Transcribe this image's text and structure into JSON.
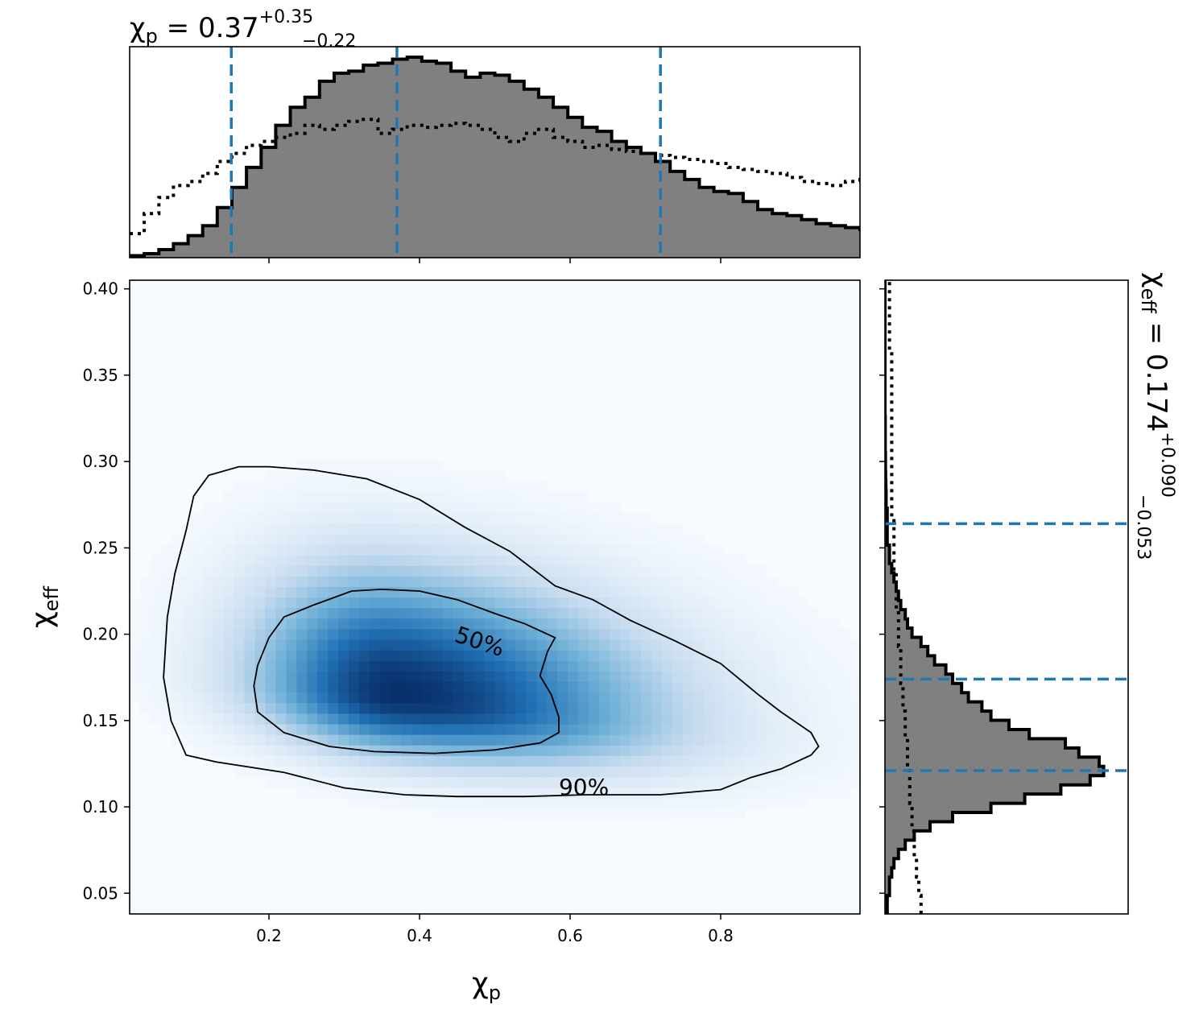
{
  "chart_data": [
    {
      "type": "heatmap",
      "panel": "joint",
      "xlabel": "χ",
      "xlabel_sub": "p",
      "ylabel": "χ",
      "ylabel_sub": "eff",
      "xlim": [
        0.015,
        0.985
      ],
      "ylim": [
        0.038,
        0.405
      ],
      "x_ticks": [
        "0.2",
        "0.4",
        "0.6",
        "0.8"
      ],
      "x_tick_values": [
        0.2,
        0.4,
        0.6,
        0.8
      ],
      "y_ticks": [
        "0.05",
        "0.10",
        "0.15",
        "0.20",
        "0.25",
        "0.30",
        "0.35",
        "0.40"
      ],
      "y_tick_values": [
        0.05,
        0.1,
        0.15,
        0.2,
        0.25,
        0.3,
        0.35,
        0.4
      ],
      "colormap": "Blues",
      "density_peak": {
        "x": 0.37,
        "y": 0.165
      },
      "contours": [
        {
          "label": "50%",
          "label_pos": {
            "x": 0.445,
            "y": 0.196
          },
          "points": [
            [
              0.4,
              0.225
            ],
            [
              0.45,
              0.22
            ],
            [
              0.5,
              0.212
            ],
            [
              0.54,
              0.206
            ],
            [
              0.58,
              0.198
            ],
            [
              0.57,
              0.19
            ],
            [
              0.56,
              0.176
            ],
            [
              0.575,
              0.165
            ],
            [
              0.585,
              0.152
            ],
            [
              0.585,
              0.143
            ],
            [
              0.56,
              0.137
            ],
            [
              0.5,
              0.133
            ],
            [
              0.42,
              0.131
            ],
            [
              0.34,
              0.132
            ],
            [
              0.28,
              0.135
            ],
            [
              0.22,
              0.143
            ],
            [
              0.185,
              0.155
            ],
            [
              0.18,
              0.17
            ],
            [
              0.185,
              0.182
            ],
            [
              0.2,
              0.198
            ],
            [
              0.22,
              0.21
            ],
            [
              0.26,
              0.217
            ],
            [
              0.31,
              0.225
            ],
            [
              0.35,
              0.226
            ],
            [
              0.4,
              0.225
            ]
          ]
        },
        {
          "label": "90%",
          "label_pos": {
            "x": 0.585,
            "y": 0.107
          },
          "points": [
            [
              0.2,
              0.297
            ],
            [
              0.26,
              0.295
            ],
            [
              0.33,
              0.29
            ],
            [
              0.4,
              0.278
            ],
            [
              0.46,
              0.262
            ],
            [
              0.52,
              0.248
            ],
            [
              0.58,
              0.228
            ],
            [
              0.63,
              0.22
            ],
            [
              0.68,
              0.208
            ],
            [
              0.74,
              0.196
            ],
            [
              0.8,
              0.183
            ],
            [
              0.85,
              0.165
            ],
            [
              0.88,
              0.155
            ],
            [
              0.92,
              0.143
            ],
            [
              0.93,
              0.135
            ],
            [
              0.92,
              0.13
            ],
            [
              0.88,
              0.122
            ],
            [
              0.84,
              0.117
            ],
            [
              0.8,
              0.11
            ],
            [
              0.72,
              0.107
            ],
            [
              0.62,
              0.107
            ],
            [
              0.54,
              0.106
            ],
            [
              0.45,
              0.106
            ],
            [
              0.38,
              0.107
            ],
            [
              0.3,
              0.111
            ],
            [
              0.22,
              0.12
            ],
            [
              0.13,
              0.126
            ],
            [
              0.09,
              0.13
            ],
            [
              0.07,
              0.15
            ],
            [
              0.06,
              0.175
            ],
            [
              0.065,
              0.21
            ],
            [
              0.075,
              0.235
            ],
            [
              0.09,
              0.26
            ],
            [
              0.1,
              0.28
            ],
            [
              0.12,
              0.292
            ],
            [
              0.16,
              0.297
            ],
            [
              0.2,
              0.297
            ]
          ]
        }
      ]
    },
    {
      "type": "area",
      "panel": "top-marginal",
      "title_lhs": "χ",
      "title_lhs_sub": "p",
      "title_rhs": " = 0.37",
      "title_sup": "+0.35",
      "title_sub": "−0.22",
      "xlim": [
        0.015,
        0.985
      ],
      "bin_edges_start": 0.015,
      "bin_width": 0.0194,
      "posterior": [
        0.01,
        0.02,
        0.04,
        0.07,
        0.11,
        0.16,
        0.25,
        0.35,
        0.45,
        0.55,
        0.66,
        0.75,
        0.8,
        0.88,
        0.92,
        0.93,
        0.96,
        0.97,
        0.99,
        1.0,
        0.98,
        0.97,
        0.93,
        0.9,
        0.92,
        0.91,
        0.88,
        0.84,
        0.8,
        0.75,
        0.7,
        0.65,
        0.63,
        0.58,
        0.55,
        0.52,
        0.48,
        0.43,
        0.39,
        0.35,
        0.33,
        0.32,
        0.28,
        0.24,
        0.22,
        0.21,
        0.19,
        0.17,
        0.16,
        0.15,
        0.14,
        0.13,
        0.11,
        0.1,
        0.1,
        0.09,
        0.08,
        0.07,
        0.06,
        0.05,
        0.05,
        0.04,
        0.03,
        0.02,
        0.01
      ],
      "prior": [
        0.12,
        0.22,
        0.3,
        0.36,
        0.38,
        0.42,
        0.48,
        0.52,
        0.56,
        0.58,
        0.6,
        0.62,
        0.66,
        0.64,
        0.66,
        0.68,
        0.69,
        0.62,
        0.64,
        0.66,
        0.65,
        0.66,
        0.67,
        0.66,
        0.64,
        0.6,
        0.58,
        0.62,
        0.64,
        0.6,
        0.58,
        0.55,
        0.56,
        0.54,
        0.53,
        0.52,
        0.51,
        0.5,
        0.49,
        0.48,
        0.47,
        0.45,
        0.44,
        0.43,
        0.42,
        0.4,
        0.38,
        0.37,
        0.36,
        0.38,
        0.39,
        0.37,
        0.35,
        0.33,
        0.32,
        0.3,
        0.28,
        0.26,
        0.28,
        0.3,
        0.28,
        0.26,
        0.24,
        0.2,
        0.12
      ],
      "quantile_lines": [
        0.15,
        0.37,
        0.72
      ]
    },
    {
      "type": "area",
      "panel": "right-marginal",
      "title_lhs": "χ",
      "title_lhs_sub": "eff",
      "title_rhs": " = 0.174",
      "title_sup": "+0.090",
      "title_sub": "−0.053",
      "ylim": [
        0.038,
        0.405
      ],
      "bin_edges_start": 0.038,
      "bin_width": 0.00534,
      "posterior": [
        0.01,
        0.01,
        0.02,
        0.02,
        0.03,
        0.04,
        0.06,
        0.09,
        0.13,
        0.2,
        0.3,
        0.47,
        0.62,
        0.78,
        0.91,
        0.97,
        0.95,
        0.86,
        0.8,
        0.64,
        0.55,
        0.47,
        0.43,
        0.37,
        0.34,
        0.3,
        0.27,
        0.22,
        0.19,
        0.16,
        0.12,
        0.1,
        0.09,
        0.07,
        0.06,
        0.05,
        0.04,
        0.03,
        0.02,
        0.02,
        0.01,
        0.01,
        0.01,
        0.01,
        0.005,
        0.005,
        0.004,
        0.003,
        0.002,
        0.002,
        0.001,
        0.001,
        0.001,
        0.001,
        0.0,
        0.0,
        0.0,
        0.0,
        0.0,
        0.0,
        0.0,
        0.0,
        0.0,
        0.0,
        0.0,
        0.0,
        0.0,
        0.0,
        0.0
      ],
      "prior": [
        0.16,
        0.16,
        0.15,
        0.15,
        0.14,
        0.14,
        0.13,
        0.13,
        0.13,
        0.12,
        0.12,
        0.12,
        0.11,
        0.11,
        0.11,
        0.11,
        0.1,
        0.1,
        0.1,
        0.09,
        0.09,
        0.09,
        0.08,
        0.08,
        0.08,
        0.07,
        0.07,
        0.07,
        0.07,
        0.06,
        0.06,
        0.06,
        0.06,
        0.05,
        0.05,
        0.05,
        0.05,
        0.04,
        0.04,
        0.04,
        0.04,
        0.04,
        0.04,
        0.03,
        0.03,
        0.03,
        0.03,
        0.03,
        0.03,
        0.03,
        0.03,
        0.03,
        0.03,
        0.03,
        0.03,
        0.03,
        0.03,
        0.03,
        0.03,
        0.03,
        0.03,
        0.02,
        0.02,
        0.02,
        0.02,
        0.02,
        0.02,
        0.02,
        0.02
      ],
      "quantile_lines": [
        0.121,
        0.174,
        0.264
      ]
    }
  ],
  "colors": {
    "posterior_fill": "#808080",
    "outline": "#000000",
    "quantile": "#1f77b4",
    "heat_low": "#f7fbff",
    "heat_high": "#08306b"
  }
}
